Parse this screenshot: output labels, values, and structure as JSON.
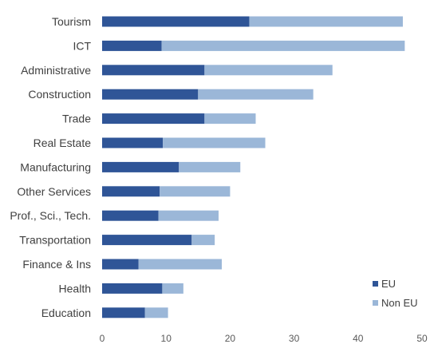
{
  "chart_data": {
    "type": "bar",
    "orientation": "horizontal",
    "stacked": true,
    "categories": [
      "Tourism",
      "ICT",
      "Administrative",
      "Construction",
      "Trade",
      "Real Estate",
      "Manufacturing",
      "Other Services",
      "Prof., Sci., Tech.",
      "Transportation",
      "Finance & Ins",
      "Health",
      "Education"
    ],
    "series": [
      {
        "name": "EU",
        "color": "#2f5597",
        "values": [
          23,
          9.3,
          16,
          15,
          16,
          9.5,
          12,
          9,
          8.8,
          14,
          5.7,
          9.4,
          6.7
        ]
      },
      {
        "name": "Non EU",
        "color": "#9bb7d8",
        "values": [
          24,
          38,
          20,
          18,
          8,
          16,
          9.6,
          11,
          9.4,
          3.6,
          13,
          3.3,
          3.6
        ]
      }
    ],
    "x_ticks": [
      "0",
      "10",
      "20",
      "30",
      "40",
      "50"
    ],
    "xlim": [
      0,
      50
    ],
    "grid": false,
    "legend_position": "bottom-right"
  }
}
